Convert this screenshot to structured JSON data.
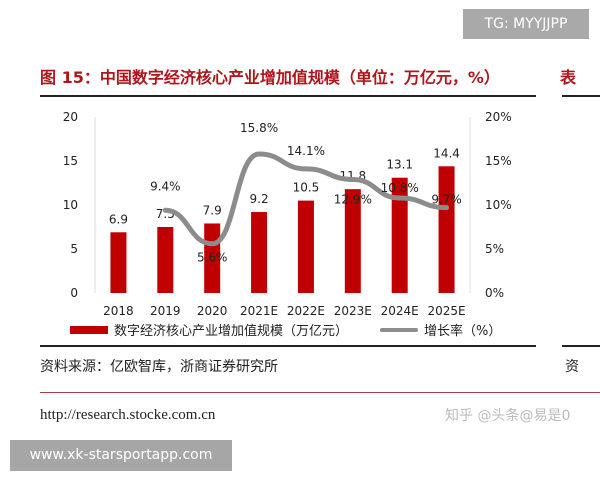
{
  "badge": "TG: MYYJJPP",
  "title": "图 15：中国数字经济核心产业增加值规模（单位：万亿元，%）",
  "title_cut": "表",
  "source": "资料来源：亿欧智库，浙商证券研究所",
  "source_cut": "资",
  "url": "http://research.stocke.com.cn",
  "zhihu_watermark": "知乎 @头条@易是0",
  "site_watermark": "www.xk-starsportapp.com",
  "chart_data": {
    "type": "bar+line",
    "categories": [
      "2018",
      "2019",
      "2020",
      "2021E",
      "2022E",
      "2023E",
      "2024E",
      "2025E"
    ],
    "series": [
      {
        "name": "数字经济核心产业增加值规模（万亿元）",
        "type": "bar",
        "axis": "left",
        "color": "#c00000",
        "values": [
          6.9,
          7.5,
          7.9,
          9.2,
          10.5,
          11.8,
          13.1,
          14.4
        ],
        "labels": [
          "6.9",
          "7.5",
          "7.9",
          "9.2",
          "10.5",
          "11.8",
          "13.1",
          "14.4"
        ]
      },
      {
        "name": "增长率（%）",
        "type": "line",
        "axis": "right",
        "color": "#8c8c8c",
        "values": [
          null,
          9.4,
          5.6,
          15.8,
          14.1,
          12.9,
          10.8,
          9.7
        ],
        "labels": [
          "",
          "9.4%",
          "5.6%",
          "15.8%",
          "14.1%",
          "12.9%",
          "10.8%",
          "9.7%"
        ]
      }
    ],
    "left_axis": {
      "ylim": [
        0,
        20
      ],
      "ticks": [
        "0",
        "5",
        "10",
        "15",
        "20"
      ]
    },
    "right_axis": {
      "ylim": [
        0,
        20
      ],
      "ticks": [
        "0%",
        "5%",
        "10%",
        "15%",
        "20%"
      ]
    },
    "grid": false,
    "legend": "bottom"
  }
}
